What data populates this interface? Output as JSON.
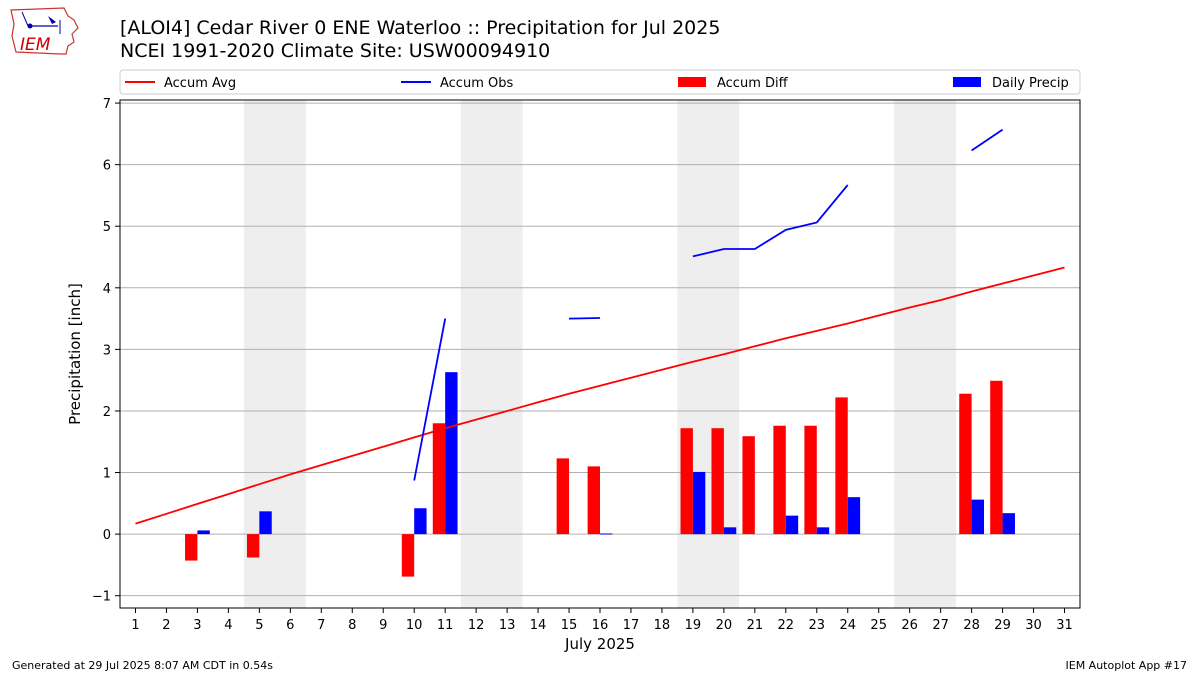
{
  "header": {
    "title_line1": "[ALOI4] Cedar River 0 ENE Waterloo :: Precipitation for Jul 2025",
    "title_line2": "NCEI 1991-2020 Climate Site: USW00094910"
  },
  "logo": {
    "text": "IEM",
    "icon": "iowa-state-outline-logo",
    "color": "#cc0000"
  },
  "footer": {
    "left": "Generated at 29 Jul 2025 8:07 AM CDT in 0.54s",
    "right": "IEM Autoplot App #17"
  },
  "chart_data": {
    "type": "bar",
    "xlabel": "July 2025",
    "ylabel": "Precipitation [inch]",
    "xlim": [
      0.5,
      31.5
    ],
    "ylim": [
      -1.2,
      7.05
    ],
    "yticks": [
      -1,
      0,
      1,
      2,
      3,
      4,
      5,
      6,
      7
    ],
    "grid": true,
    "legend_placement": "top",
    "x": [
      1,
      2,
      3,
      4,
      5,
      6,
      7,
      8,
      9,
      10,
      11,
      12,
      13,
      14,
      15,
      16,
      17,
      18,
      19,
      20,
      21,
      22,
      23,
      24,
      25,
      26,
      27,
      28,
      29,
      30,
      31
    ],
    "weekend_shading": [
      [
        4.5,
        6.5
      ],
      [
        11.5,
        13.5
      ],
      [
        18.5,
        20.5
      ],
      [
        25.5,
        27.5
      ]
    ],
    "series": [
      {
        "name": "Accum Avg",
        "kind": "line",
        "color": "#ff0000",
        "values": [
          0.17,
          0.33,
          0.49,
          0.65,
          0.81,
          0.97,
          1.12,
          1.27,
          1.42,
          1.57,
          1.72,
          1.86,
          2.0,
          2.14,
          2.28,
          2.41,
          2.54,
          2.67,
          2.8,
          2.92,
          3.05,
          3.18,
          3.3,
          3.42,
          3.55,
          3.68,
          3.8,
          3.94,
          4.07,
          4.2,
          4.33
        ]
      },
      {
        "name": "Accum Obs",
        "kind": "line",
        "color": "#0000ff",
        "values": [
          null,
          null,
          null,
          null,
          null,
          null,
          null,
          null,
          null,
          0.87,
          3.5,
          null,
          null,
          null,
          3.5,
          3.51,
          null,
          null,
          4.51,
          4.63,
          4.63,
          4.94,
          5.06,
          5.67,
          null,
          null,
          null,
          6.23,
          6.57,
          null,
          null
        ]
      },
      {
        "name": "Accum Diff",
        "kind": "bar",
        "color": "#ff0000",
        "values": [
          null,
          null,
          -0.43,
          null,
          -0.38,
          null,
          null,
          null,
          null,
          -0.69,
          1.8,
          null,
          null,
          null,
          1.23,
          1.1,
          null,
          null,
          1.72,
          1.72,
          1.59,
          1.76,
          1.76,
          2.22,
          null,
          null,
          null,
          2.28,
          2.49,
          null,
          null
        ]
      },
      {
        "name": "Daily Precip",
        "kind": "bar",
        "color": "#0000ff",
        "values": [
          null,
          null,
          0.06,
          null,
          0.37,
          null,
          null,
          null,
          null,
          0.42,
          2.63,
          null,
          null,
          null,
          null,
          0.01,
          null,
          null,
          1.01,
          0.11,
          null,
          0.3,
          0.11,
          0.6,
          null,
          null,
          null,
          0.56,
          0.34,
          null,
          null
        ]
      }
    ]
  }
}
